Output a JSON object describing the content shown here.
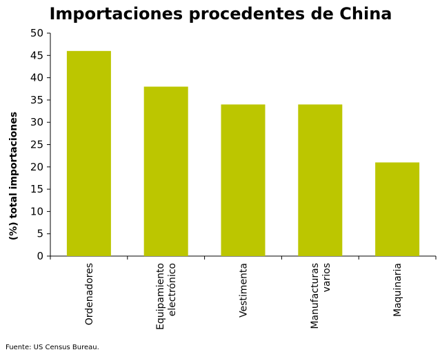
{
  "chart_data": {
    "type": "bar",
    "title": "Importaciones procedentes de China",
    "ylabel": "(%) total importaciones",
    "xlabel": "",
    "categories": [
      [
        "Ordenadores"
      ],
      [
        "Equipamiento",
        "electrónico"
      ],
      [
        "Vestimenta"
      ],
      [
        "Manufacturas",
        "varios"
      ],
      [
        "Maquinaria"
      ]
    ],
    "values": [
      46,
      38,
      34,
      34,
      21
    ],
    "ylim": [
      0,
      50
    ],
    "yticks": [
      0,
      5,
      10,
      15,
      20,
      25,
      30,
      35,
      40,
      45,
      50
    ],
    "grid": false,
    "bar_color": "#bcc600"
  },
  "source_note": "Fuente: US Census Bureau."
}
